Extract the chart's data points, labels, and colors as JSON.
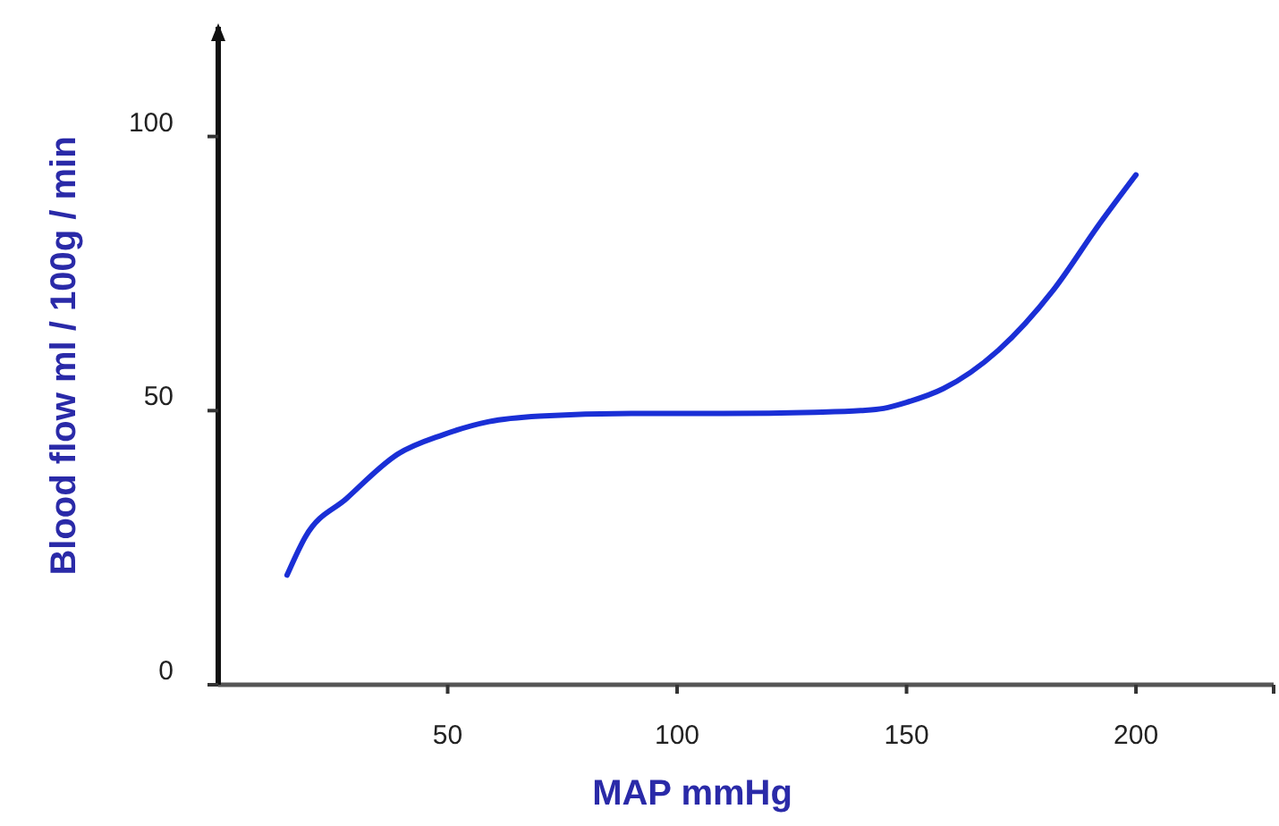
{
  "chart_data": {
    "type": "line",
    "xlabel": "MAP  mmHg",
    "ylabel": "Blood flow  ml / 100g / min",
    "xlim": [
      0,
      230
    ],
    "ylim": [
      0,
      120
    ],
    "xticks": [
      50,
      100,
      150,
      200,
      {
        "value": 230,
        "label": null
      }
    ],
    "yticks": [
      0,
      50,
      100
    ],
    "grid": false,
    "marker": "none",
    "line_style": "solid",
    "series": [
      {
        "color": "#1a2fd6",
        "x": [
          15,
          19,
          28,
          39,
          49,
          59,
          70,
          90,
          110,
          130,
          140,
          145,
          150,
          158,
          170,
          182,
          192,
          200
        ],
        "values": [
          20,
          27,
          34,
          42,
          45.6,
          48,
          49,
          49.5,
          49.5,
          49.7,
          50,
          50.4,
          51.5,
          54,
          61,
          72,
          84,
          93
        ]
      }
    ]
  }
}
